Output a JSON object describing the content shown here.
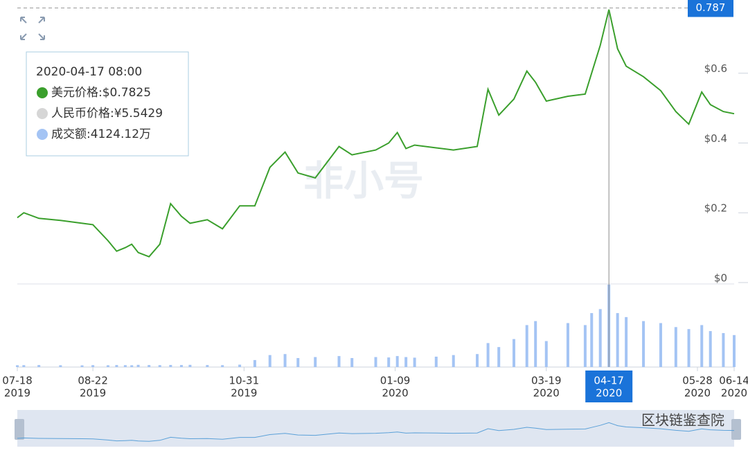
{
  "chart_data": {
    "type": "line",
    "x": [
      "2019-07-18",
      "2019-07-21",
      "2019-07-28",
      "2019-08-07",
      "2019-08-17",
      "2019-08-22",
      "2019-08-29",
      "2019-09-02",
      "2019-09-06",
      "2019-09-09",
      "2019-09-12",
      "2019-09-17",
      "2019-09-22",
      "2019-09-27",
      "2019-10-02",
      "2019-10-06",
      "2019-10-14",
      "2019-10-21",
      "2019-10-29",
      "2019-11-05",
      "2019-11-12",
      "2019-11-19",
      "2019-11-25",
      "2019-12-03",
      "2019-12-14",
      "2019-12-20",
      "2019-12-31",
      "2020-01-06",
      "2020-01-10",
      "2020-01-14",
      "2020-01-18",
      "2020-01-28",
      "2020-02-05",
      "2020-02-16",
      "2020-02-21",
      "2020-02-26",
      "2020-03-04",
      "2020-03-10",
      "2020-03-14",
      "2020-03-19",
      "2020-03-29",
      "2020-04-06",
      "2020-04-09",
      "2020-04-13",
      "2020-04-17",
      "2020-04-21",
      "2020-04-25",
      "2020-05-03",
      "2020-05-11",
      "2020-05-18",
      "2020-05-24",
      "2020-05-30",
      "2020-06-03",
      "2020-06-09",
      "2020-06-14"
    ],
    "series": [
      {
        "name": "美元价格",
        "color": "#3a9f2c",
        "values": [
          0.186,
          0.2,
          0.184,
          0.178,
          0.17,
          0.166,
          0.12,
          0.09,
          0.1,
          0.11,
          0.086,
          0.074,
          0.11,
          0.226,
          0.19,
          0.17,
          0.18,
          0.154,
          0.22,
          0.22,
          0.33,
          0.374,
          0.314,
          0.3,
          0.39,
          0.366,
          0.38,
          0.4,
          0.43,
          0.384,
          0.394,
          0.386,
          0.38,
          0.39,
          0.554,
          0.48,
          0.526,
          0.606,
          0.574,
          0.52,
          0.534,
          0.54,
          0.6,
          0.68,
          0.7825,
          0.67,
          0.62,
          0.59,
          0.55,
          0.49,
          0.454,
          0.546,
          0.51,
          0.49,
          0.484
        ]
      },
      {
        "name": "成交额",
        "color": "#a4c4f4",
        "axis": "y2",
        "values": [
          90,
          95,
          100,
          90,
          85,
          95,
          90,
          100,
          95,
          90,
          110,
          100,
          95,
          105,
          100,
          110,
          100,
          95,
          120,
          350,
          600,
          650,
          450,
          500,
          550,
          450,
          500,
          480,
          550,
          500,
          470,
          520,
          600,
          650,
          1200,
          1000,
          1400,
          2100,
          2300,
          1300,
          2200,
          2100,
          2700,
          2900,
          4124.12,
          2700,
          2500,
          2300,
          2200,
          2000,
          1900,
          2100,
          1800,
          1700,
          1600
        ]
      }
    ],
    "xlim": [
      "2019-07-18",
      "2020-06-14"
    ],
    "xticks": [
      {
        "value": "2019-07-18",
        "label": [
          "07-18",
          "2019"
        ]
      },
      {
        "value": "2019-08-22",
        "label": [
          "08-22",
          "2019"
        ]
      },
      {
        "value": "2019-10-31",
        "label": [
          "10-31",
          "2019"
        ]
      },
      {
        "value": "2020-01-09",
        "label": [
          "01-09",
          "2020"
        ]
      },
      {
        "value": "2020-03-19",
        "label": [
          "03-19",
          "2020"
        ]
      },
      {
        "value": "2020-05-28",
        "label": [
          "05-28",
          "2020"
        ]
      },
      {
        "value": "2020-06-14",
        "label": [
          "06-14",
          "2020"
        ]
      }
    ],
    "ylim": [
      0,
      0.79
    ],
    "yticks": [
      {
        "value": 0,
        "label": "$0"
      },
      {
        "value": 0.2,
        "label": "$0.2"
      },
      {
        "value": 0.4,
        "label": "$0.4"
      },
      {
        "value": 0.6,
        "label": "$0.6"
      }
    ],
    "y2lim": [
      0,
      4124.12
    ],
    "grid": false,
    "crosshair": {
      "x": "2020-04-17",
      "x_label": [
        "04-17",
        "2020"
      ],
      "y": 0.787
    },
    "tooltip": {
      "title": "2020-04-17 08:00",
      "items": [
        {
          "text": "美元价格:$0.7825",
          "color": "#3a9f2c"
        },
        {
          "text": "人民币价格:¥5.5429",
          "color": "#d6d6d6"
        },
        {
          "text": "成交额:4124.12万",
          "color": "#a4c4f4"
        }
      ]
    },
    "watermark": "非小号",
    "source": "区块链鉴查院"
  }
}
